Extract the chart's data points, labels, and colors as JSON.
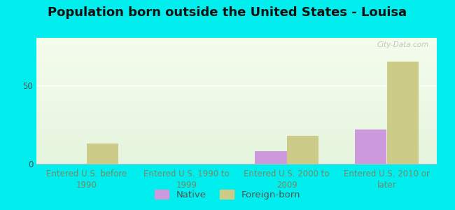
{
  "title": "Population born outside the United States - Louisa",
  "categories": [
    "Entered U.S. before\n1990",
    "Entered U.S. 1990 to\n1999",
    "Entered U.S. 2000 to\n2009",
    "Entered U.S. 2010 or\nlater"
  ],
  "native_values": [
    0,
    0,
    8,
    22
  ],
  "foreign_values": [
    13,
    0,
    18,
    65
  ],
  "native_color": "#cc99dd",
  "foreign_color": "#cccc88",
  "background_outer": "#00eeee",
  "ylim": [
    0,
    80
  ],
  "yticks": [
    0,
    50
  ],
  "bar_width": 0.32,
  "title_fontsize": 13,
  "tick_fontsize": 8.5,
  "legend_fontsize": 9.5,
  "watermark": "City-Data.com",
  "xticklabel_color": "#778866",
  "ytick_color": "#555555",
  "grid_color": "#ffffff",
  "spine_color": "#bbbbbb"
}
